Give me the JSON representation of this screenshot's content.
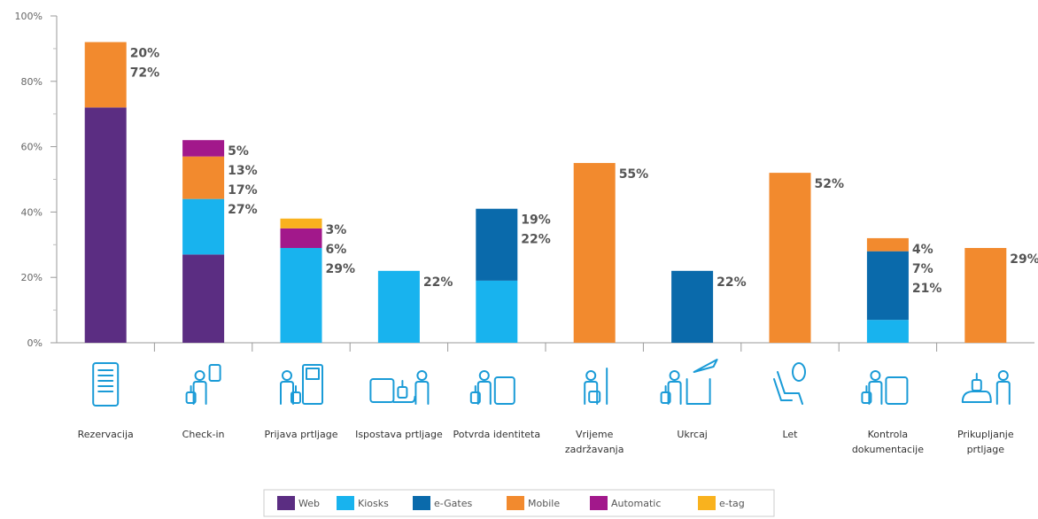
{
  "chart_data": {
    "type": "bar",
    "stacked": true,
    "categories": [
      [
        "Rezervacija"
      ],
      [
        "Check-in"
      ],
      [
        "Prijava prtljage"
      ],
      [
        "Ispostava prtljage"
      ],
      [
        "Potvrda identiteta"
      ],
      [
        "Vrijeme",
        "zadržavanja"
      ],
      [
        "Ukrcaj"
      ],
      [
        "Let"
      ],
      [
        "Kontrola",
        "dokumentacije"
      ],
      [
        "Prikupljanje",
        "prtljage"
      ]
    ],
    "category_icons": [
      "tablet-icon",
      "passenger-checkin-icon",
      "baggage-drop-icon",
      "baggage-handover-icon",
      "identity-check-icon",
      "waiting-icon",
      "boarding-icon",
      "seat-icon",
      "document-control-icon",
      "baggage-claim-icon"
    ],
    "series": [
      {
        "name": "Web",
        "color": "#5b2d82",
        "values": [
          72,
          27,
          0,
          0,
          0,
          0,
          0,
          0,
          0,
          0
        ]
      },
      {
        "name": "Kiosks",
        "color": "#18b3ee",
        "values": [
          0,
          17,
          29,
          22,
          19,
          0,
          0,
          0,
          7,
          0
        ]
      },
      {
        "name": "e-Gates",
        "color": "#0a6aab",
        "values": [
          0,
          0,
          0,
          0,
          22,
          0,
          22,
          0,
          21,
          0
        ]
      },
      {
        "name": "Mobile",
        "color": "#f28a2e",
        "values": [
          20,
          13,
          0,
          0,
          0,
          55,
          0,
          52,
          4,
          29
        ]
      },
      {
        "name": "Automatic",
        "color": "#a2188b",
        "values": [
          0,
          5,
          6,
          0,
          0,
          0,
          0,
          0,
          0,
          0
        ]
      },
      {
        "name": "e-tag",
        "color": "#f9b21e",
        "values": [
          0,
          0,
          3,
          0,
          0,
          0,
          0,
          0,
          0,
          0
        ]
      }
    ],
    "data_labels": [
      [
        "20%",
        "72%"
      ],
      [
        "5%",
        "13%",
        "17%",
        "27%"
      ],
      [
        "3%",
        "6%",
        "29%"
      ],
      [
        "22%"
      ],
      [
        "19%",
        "22%"
      ],
      [
        "55%"
      ],
      [
        "22%"
      ],
      [
        "52%"
      ],
      [
        "4%",
        "7%",
        "21%"
      ],
      [
        "29%"
      ]
    ],
    "y_ticks": [
      "0%",
      "20%",
      "40%",
      "60%",
      "80%",
      "100%"
    ],
    "ylim": [
      0,
      100
    ],
    "legend_position": "bottom-center",
    "title": "",
    "xlabel": "",
    "ylabel": ""
  }
}
